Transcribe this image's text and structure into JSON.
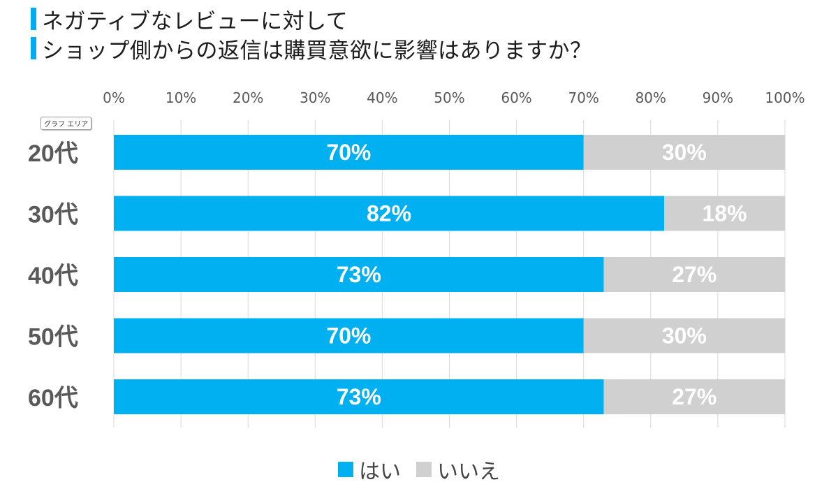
{
  "title": {
    "line1": "ネガティブなレビューに対して",
    "line2": "ショップ側からの返信は購買意欲に影響はありますか？"
  },
  "tooltip": "グラフ エリア",
  "colors": {
    "accent": "#00aeef",
    "yes": "#00b0f0",
    "no": "#d0d0d0",
    "grid": "#d9d9d9"
  },
  "chart_data": {
    "type": "bar",
    "orientation": "horizontal",
    "stacked": true,
    "categories": [
      "20代",
      "30代",
      "40代",
      "50代",
      "60代"
    ],
    "series": [
      {
        "name": "はい",
        "values": [
          70,
          82,
          73,
          70,
          73
        ],
        "color": "#00b0f0"
      },
      {
        "name": "いいえ",
        "values": [
          30,
          18,
          27,
          30,
          27
        ],
        "color": "#d0d0d0"
      }
    ],
    "xlim": [
      0,
      100
    ],
    "xticks": [
      "0%",
      "10%",
      "20%",
      "30%",
      "40%",
      "50%",
      "60%",
      "70%",
      "80%",
      "90%",
      "100%"
    ],
    "unit": "%",
    "grid": true,
    "legend_position": "bottom",
    "axis_position": "top"
  }
}
